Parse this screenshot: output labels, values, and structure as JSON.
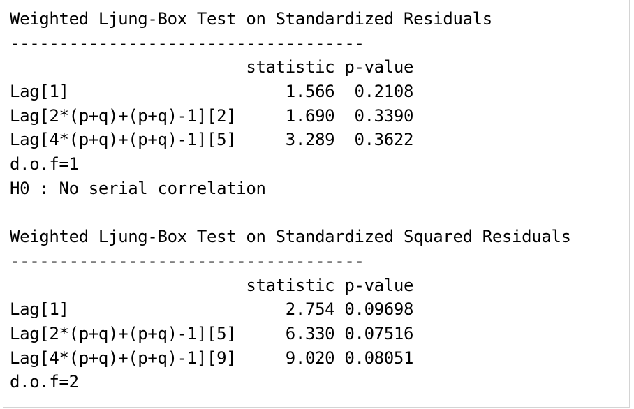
{
  "output_lines": [
    "Weighted Ljung-Box Test on Standardized Residuals",
    "------------------------------------",
    "                        statistic p-value",
    "Lag[1]                      1.566  0.2108",
    "Lag[2*(p+q)+(p+q)-1][2]     1.690  0.3390",
    "Lag[4*(p+q)+(p+q)-1][5]     3.289  0.3622",
    "d.o.f=1",
    "H0 : No serial correlation",
    "",
    "Weighted Ljung-Box Test on Standardized Squared Residuals",
    "------------------------------------",
    "                        statistic p-value",
    "Lag[1]                      2.754 0.09698",
    "Lag[2*(p+q)+(p+q)-1][5]     6.330 0.07516",
    "Lag[4*(p+q)+(p+q)-1][9]     9.020 0.08051",
    "d.o.f=2"
  ]
}
